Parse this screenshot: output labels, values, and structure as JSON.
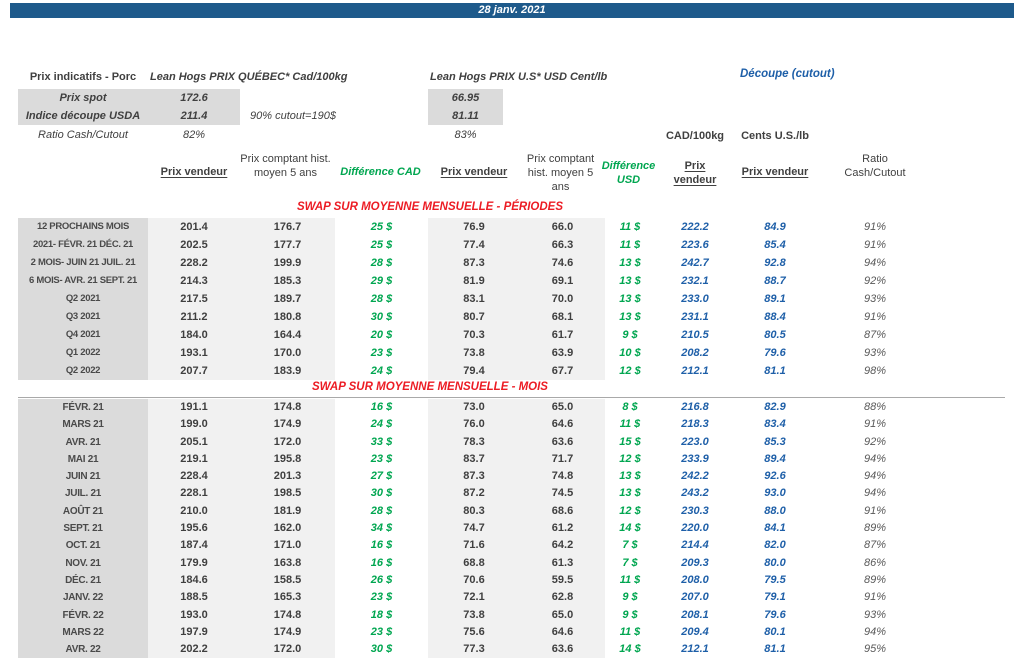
{
  "date_banner": "28 janv. 2021",
  "header": {
    "title": "Prix indicatifs - Porc",
    "quebec_title": "Lean Hogs PRIX QUÉBEC* Cad/100kg",
    "us_title": "Lean Hogs PRIX U.S* USD Cent/lb",
    "cutout_title": "Découpe (cutout)",
    "spot_label": "Prix spot",
    "spot_cad": "172.6",
    "spot_usd": "66.95",
    "indice_label": "Indice découpe USDA",
    "indice_cad": "211.4",
    "indice_note": "90% cutout=190$",
    "indice_usd": "81.11",
    "ratio_label": "Ratio Cash/Cutout",
    "ratio_cad": "82%",
    "ratio_usd": "83%"
  },
  "columns": {
    "cad_unit": "CAD/100kg",
    "us_unit": "Cents U.S./lb",
    "prix_vendeur_cad": "Prix vendeur",
    "prix_comptant_cad": "Prix comptant hist. moyen 5 ans",
    "diff_cad": "Différence CAD",
    "prix_vendeur_usd": "Prix vendeur",
    "prix_comptant_usd": "Prix comptant hist. moyen 5 ans",
    "diff_usd": "Différence USD",
    "prix_vendeur_cutout_cad": "Prix vendeur",
    "prix_vendeur_cutout_us": "Prix vendeur",
    "ratio": "Ratio Cash/Cutout"
  },
  "sections": [
    {
      "title": "SWAP SUR MOYENNE MENSUELLE - PÉRIODES",
      "rows": [
        {
          "label": "12 PROCHAINS MOIS",
          "cad_v": "201.4",
          "cad_h": "176.7",
          "d_cad": "25 $",
          "usd_v": "76.9",
          "usd_h": "66.0",
          "d_usd": "11 $",
          "co_cad": "222.2",
          "co_us": "84.9",
          "ratio": "91%"
        },
        {
          "label": "2021- FÉVR. 21 DÉC. 21",
          "cad_v": "202.5",
          "cad_h": "177.7",
          "d_cad": "25 $",
          "usd_v": "77.4",
          "usd_h": "66.3",
          "d_usd": "11 $",
          "co_cad": "223.6",
          "co_us": "85.4",
          "ratio": "91%"
        },
        {
          "label": "2 MOIS- JUIN 21 JUIL. 21",
          "cad_v": "228.2",
          "cad_h": "199.9",
          "d_cad": "28 $",
          "usd_v": "87.3",
          "usd_h": "74.6",
          "d_usd": "13 $",
          "co_cad": "242.7",
          "co_us": "92.8",
          "ratio": "94%"
        },
        {
          "label": "6 MOIS- AVR. 21 SEPT. 21",
          "cad_v": "214.3",
          "cad_h": "185.3",
          "d_cad": "29 $",
          "usd_v": "81.9",
          "usd_h": "69.1",
          "d_usd": "13 $",
          "co_cad": "232.1",
          "co_us": "88.7",
          "ratio": "92%"
        },
        {
          "label": "Q2 2021",
          "cad_v": "217.5",
          "cad_h": "189.7",
          "d_cad": "28 $",
          "usd_v": "83.1",
          "usd_h": "70.0",
          "d_usd": "13 $",
          "co_cad": "233.0",
          "co_us": "89.1",
          "ratio": "93%"
        },
        {
          "label": "Q3 2021",
          "cad_v": "211.2",
          "cad_h": "180.8",
          "d_cad": "30 $",
          "usd_v": "80.7",
          "usd_h": "68.1",
          "d_usd": "13 $",
          "co_cad": "231.1",
          "co_us": "88.4",
          "ratio": "91%"
        },
        {
          "label": "Q4 2021",
          "cad_v": "184.0",
          "cad_h": "164.4",
          "d_cad": "20 $",
          "usd_v": "70.3",
          "usd_h": "61.7",
          "d_usd": "9 $",
          "co_cad": "210.5",
          "co_us": "80.5",
          "ratio": "87%"
        },
        {
          "label": "Q1 2022",
          "cad_v": "193.1",
          "cad_h": "170.0",
          "d_cad": "23 $",
          "usd_v": "73.8",
          "usd_h": "63.9",
          "d_usd": "10 $",
          "co_cad": "208.2",
          "co_us": "79.6",
          "ratio": "93%"
        },
        {
          "label": "Q2 2022",
          "cad_v": "207.7",
          "cad_h": "183.9",
          "d_cad": "24 $",
          "usd_v": "79.4",
          "usd_h": "67.7",
          "d_usd": "12 $",
          "co_cad": "212.1",
          "co_us": "81.1",
          "ratio": "98%"
        }
      ]
    },
    {
      "title": "SWAP SUR MOYENNE MENSUELLE - MOIS",
      "rows": [
        {
          "label": "FÉVR. 21",
          "cad_v": "191.1",
          "cad_h": "174.8",
          "d_cad": "16 $",
          "usd_v": "73.0",
          "usd_h": "65.0",
          "d_usd": "8 $",
          "co_cad": "216.8",
          "co_us": "82.9",
          "ratio": "88%"
        },
        {
          "label": "MARS 21",
          "cad_v": "199.0",
          "cad_h": "174.9",
          "d_cad": "24 $",
          "usd_v": "76.0",
          "usd_h": "64.6",
          "d_usd": "11 $",
          "co_cad": "218.3",
          "co_us": "83.4",
          "ratio": "91%"
        },
        {
          "label": "AVR. 21",
          "cad_v": "205.1",
          "cad_h": "172.0",
          "d_cad": "33 $",
          "usd_v": "78.3",
          "usd_h": "63.6",
          "d_usd": "15 $",
          "co_cad": "223.0",
          "co_us": "85.3",
          "ratio": "92%"
        },
        {
          "label": "MAI 21",
          "cad_v": "219.1",
          "cad_h": "195.8",
          "d_cad": "23 $",
          "usd_v": "83.7",
          "usd_h": "71.7",
          "d_usd": "12 $",
          "co_cad": "233.9",
          "co_us": "89.4",
          "ratio": "94%"
        },
        {
          "label": "JUIN 21",
          "cad_v": "228.4",
          "cad_h": "201.3",
          "d_cad": "27 $",
          "usd_v": "87.3",
          "usd_h": "74.8",
          "d_usd": "13 $",
          "co_cad": "242.2",
          "co_us": "92.6",
          "ratio": "94%"
        },
        {
          "label": "JUIL. 21",
          "cad_v": "228.1",
          "cad_h": "198.5",
          "d_cad": "30 $",
          "usd_v": "87.2",
          "usd_h": "74.5",
          "d_usd": "13 $",
          "co_cad": "243.2",
          "co_us": "93.0",
          "ratio": "94%"
        },
        {
          "label": "AOÛT 21",
          "cad_v": "210.0",
          "cad_h": "181.9",
          "d_cad": "28 $",
          "usd_v": "80.3",
          "usd_h": "68.6",
          "d_usd": "12 $",
          "co_cad": "230.3",
          "co_us": "88.0",
          "ratio": "91%"
        },
        {
          "label": "SEPT. 21",
          "cad_v": "195.6",
          "cad_h": "162.0",
          "d_cad": "34 $",
          "usd_v": "74.7",
          "usd_h": "61.2",
          "d_usd": "14 $",
          "co_cad": "220.0",
          "co_us": "84.1",
          "ratio": "89%"
        },
        {
          "label": "OCT. 21",
          "cad_v": "187.4",
          "cad_h": "171.0",
          "d_cad": "16 $",
          "usd_v": "71.6",
          "usd_h": "64.2",
          "d_usd": "7 $",
          "co_cad": "214.4",
          "co_us": "82.0",
          "ratio": "87%"
        },
        {
          "label": "NOV. 21",
          "cad_v": "179.9",
          "cad_h": "163.8",
          "d_cad": "16 $",
          "usd_v": "68.8",
          "usd_h": "61.3",
          "d_usd": "7 $",
          "co_cad": "209.3",
          "co_us": "80.0",
          "ratio": "86%"
        },
        {
          "label": "DÉC. 21",
          "cad_v": "184.6",
          "cad_h": "158.5",
          "d_cad": "26 $",
          "usd_v": "70.6",
          "usd_h": "59.5",
          "d_usd": "11 $",
          "co_cad": "208.0",
          "co_us": "79.5",
          "ratio": "89%"
        },
        {
          "label": "JANV. 22",
          "cad_v": "188.5",
          "cad_h": "165.3",
          "d_cad": "23 $",
          "usd_v": "72.1",
          "usd_h": "62.8",
          "d_usd": "9 $",
          "co_cad": "207.0",
          "co_us": "79.1",
          "ratio": "91%"
        },
        {
          "label": "FÉVR. 22",
          "cad_v": "193.0",
          "cad_h": "174.8",
          "d_cad": "18 $",
          "usd_v": "73.8",
          "usd_h": "65.0",
          "d_usd": "9 $",
          "co_cad": "208.1",
          "co_us": "79.6",
          "ratio": "93%"
        },
        {
          "label": "MARS 22",
          "cad_v": "197.9",
          "cad_h": "174.9",
          "d_cad": "23 $",
          "usd_v": "75.6",
          "usd_h": "64.6",
          "d_usd": "11 $",
          "co_cad": "209.4",
          "co_us": "80.1",
          "ratio": "94%"
        },
        {
          "label": "AVR. 22",
          "cad_v": "202.2",
          "cad_h": "172.0",
          "d_cad": "30 $",
          "usd_v": "77.3",
          "usd_h": "63.6",
          "d_usd": "14 $",
          "co_cad": "212.1",
          "co_us": "81.1",
          "ratio": "95%"
        }
      ]
    }
  ],
  "colors": {
    "banner_blue": "#1E5A8B",
    "accent_blue": "#1E5FA8",
    "diff_green": "#00A650",
    "section_red": "#EC1C24",
    "label_bg": "#DBDBDB",
    "band_bg": "#F1F1F1",
    "text": "#404040"
  }
}
